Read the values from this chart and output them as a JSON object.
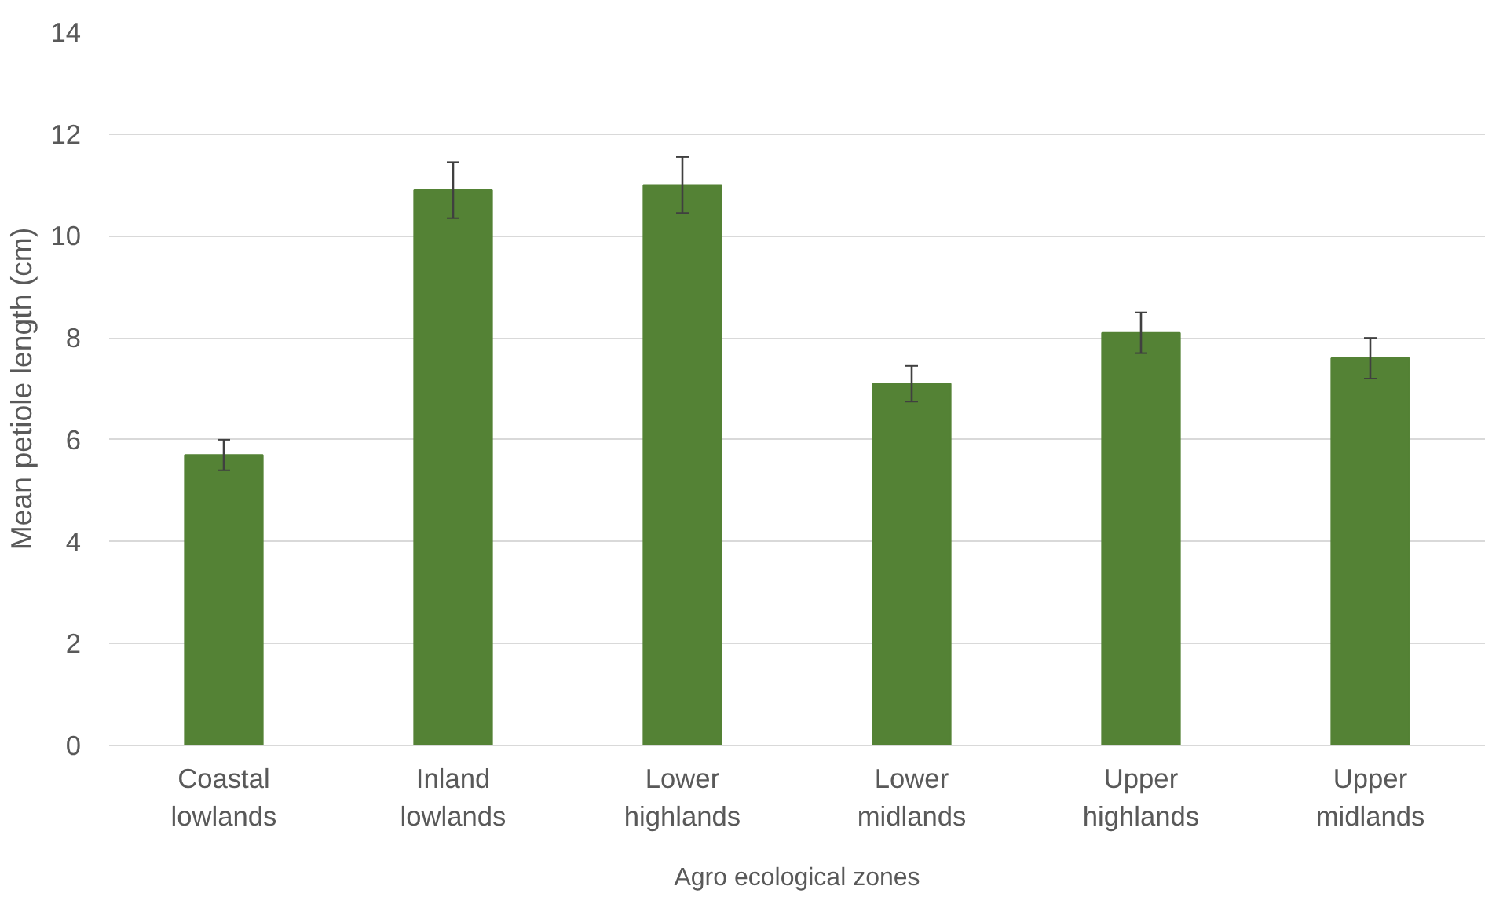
{
  "chart_data": {
    "type": "bar",
    "ylabel": "Mean petiole length (cm)",
    "xlabel": "Agro ecological zones",
    "categories": [
      "Coastal lowlands",
      "Inland lowlands",
      "Lower highlands",
      "Lower midlands",
      "Upper highlands",
      "Upper midlands"
    ],
    "values": [
      5.7,
      10.9,
      11.0,
      7.1,
      8.1,
      7.6
    ],
    "errors": [
      0.3,
      0.55,
      0.55,
      0.35,
      0.4,
      0.4
    ],
    "color": "#548235",
    "ylim": [
      0,
      14
    ],
    "yticks": [
      0,
      2,
      4,
      6,
      8,
      10,
      12,
      14
    ],
    "grid": "y"
  }
}
